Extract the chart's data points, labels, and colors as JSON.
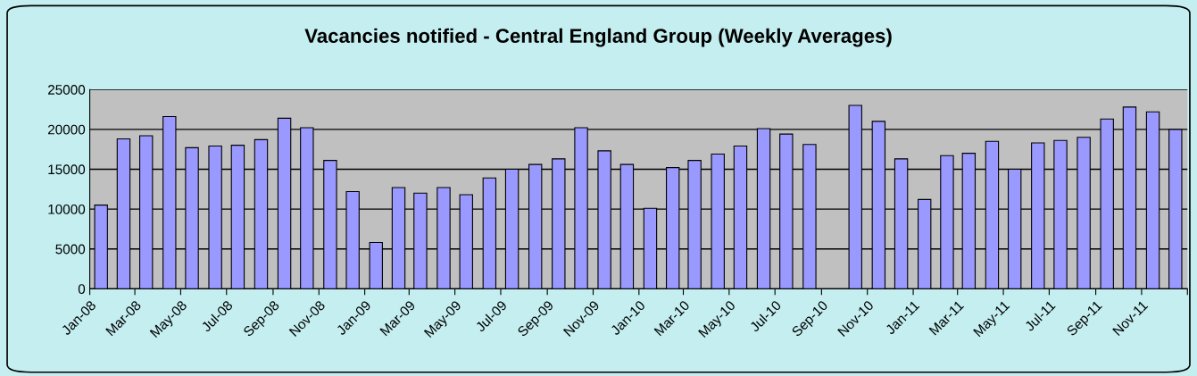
{
  "chart_data": {
    "type": "bar",
    "title": "Vacancies notified - Central England Group (Weekly Averages)",
    "x": [
      "2008-01-16",
      "2008-02-15",
      "2008-03-16",
      "2008-04-16",
      "2008-05-16",
      "2008-06-16",
      "2008-07-16",
      "2008-08-16",
      "2008-09-16",
      "2008-10-16",
      "2008-11-16",
      "2008-12-16",
      "2009-01-16",
      "2009-02-15",
      "2009-03-16",
      "2009-04-16",
      "2009-05-16",
      "2009-06-16",
      "2009-07-16",
      "2009-08-16",
      "2009-09-16",
      "2009-10-16",
      "2009-11-16",
      "2009-12-16",
      "2010-01-16",
      "2010-02-15",
      "2010-03-16",
      "2010-04-16",
      "2010-05-16",
      "2010-06-16",
      "2010-07-16",
      "2010-08-16",
      "2010-09-16",
      "2010-10-16",
      "2010-11-16",
      "2010-12-16",
      "2011-01-16",
      "2011-02-15",
      "2011-03-16",
      "2011-04-16",
      "2011-05-16",
      "2011-06-16",
      "2011-07-16",
      "2011-08-16",
      "2011-09-16",
      "2011-10-16",
      "2011-11-16",
      "2011-12-16"
    ],
    "values": [
      10500,
      18800,
      19200,
      21600,
      17700,
      17900,
      18000,
      18700,
      21400,
      20200,
      16100,
      12200,
      5800,
      12700,
      12000,
      12700,
      11800,
      13900,
      15000,
      15600,
      16300,
      20200,
      17300,
      15600,
      10100,
      15200,
      16100,
      16900,
      17900,
      20100,
      19400,
      18100,
      null,
      23000,
      21000,
      16300,
      11200,
      16700,
      17000,
      18500,
      15000,
      18300,
      18600,
      19000,
      21300,
      22800,
      22200,
      20000
    ],
    "color": "#9999ff",
    "xlim": [
      "2008-01",
      "2012-01"
    ],
    "xticks": [
      {
        "value": "2008-01",
        "label": "Jan-08"
      },
      {
        "value": "2008-03",
        "label": "Mar-08"
      },
      {
        "value": "2008-05",
        "label": "May-08"
      },
      {
        "value": "2008-07",
        "label": "Jul-08"
      },
      {
        "value": "2008-09",
        "label": "Sep-08"
      },
      {
        "value": "2008-11",
        "label": "Nov-08"
      },
      {
        "value": "2009-01",
        "label": "Jan-09"
      },
      {
        "value": "2009-03",
        "label": "Mar-09"
      },
      {
        "value": "2009-05",
        "label": "May-09"
      },
      {
        "value": "2009-07",
        "label": "Jul-09"
      },
      {
        "value": "2009-09",
        "label": "Sep-09"
      },
      {
        "value": "2009-11",
        "label": "Nov-09"
      },
      {
        "value": "2010-01",
        "label": "Jan-10"
      },
      {
        "value": "2010-03",
        "label": "Mar-10"
      },
      {
        "value": "2010-05",
        "label": "May-10"
      },
      {
        "value": "2010-07",
        "label": "Jul-10"
      },
      {
        "value": "2010-09",
        "label": "Sep-10"
      },
      {
        "value": "2010-11",
        "label": "Nov-10"
      },
      {
        "value": "2011-01",
        "label": "Jan-11"
      },
      {
        "value": "2011-03",
        "label": "Mar-11"
      },
      {
        "value": "2011-05",
        "label": "May-11"
      },
      {
        "value": "2011-07",
        "label": "Jul-11"
      },
      {
        "value": "2011-09",
        "label": "Sep-11"
      },
      {
        "value": "2011-11",
        "label": "Nov-11"
      },
      {
        "value": "2012-01",
        "label": null
      }
    ],
    "ylim": [
      0,
      25000
    ],
    "yticks": [
      0,
      5000,
      10000,
      15000,
      20000,
      25000
    ],
    "grid": "y"
  }
}
